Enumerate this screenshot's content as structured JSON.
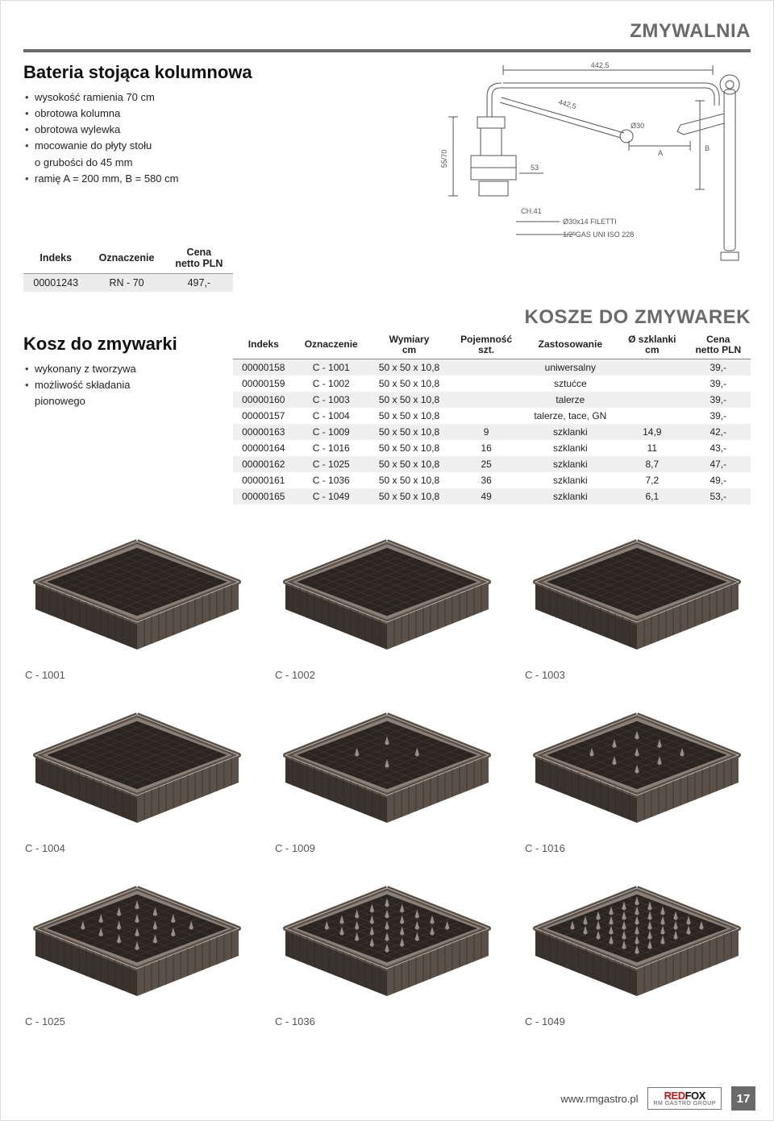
{
  "header": "ZMYWALNIA",
  "product1": {
    "title": "Bateria stojąca kolumnowa",
    "features": [
      "wysokość ramienia 70 cm",
      "obrotowa kolumna",
      "obrotowa wylewka",
      "mocowanie do płyty stołu",
      "o grubości do 45 mm",
      "ramię A = 200 mm, B = 580 cm"
    ],
    "feature_sub_indices": [
      4
    ],
    "table_headers": [
      "Indeks",
      "Oznaczenie",
      "Cena\nnetto PLN"
    ],
    "row": [
      "00001243",
      "RN - 70",
      "497,-"
    ]
  },
  "drawing": {
    "labels": {
      "top": "442,5",
      "diag": "442,5",
      "dia": "Ø30",
      "A": "A",
      "B": "B",
      "side": "55/70",
      "h53": "53",
      "CH": "CH.41",
      "fil": "Ø30x14 FILETTI",
      "gas": "1/2\"GAS UNI ISO 228"
    },
    "colors": {
      "line": "#555",
      "text": "#555"
    }
  },
  "section2": {
    "heading": "KOSZE DO ZMYWAREK",
    "title": "Kosz do zmywarki",
    "features": [
      "wykonany z tworzywa",
      "możliwość składania",
      "pionowego"
    ],
    "feature_sub_indices": [
      2
    ],
    "columns": [
      "Indeks",
      "Oznaczenie",
      "Wymiary\ncm",
      "Pojemność\nszt.",
      "Zastosowanie",
      "Ø szklanki\ncm",
      "Cena\nnetto PLN"
    ],
    "rows": [
      [
        "00000158",
        "C - 1001",
        "50 x 50 x 10,8",
        "",
        "uniwersalny",
        "",
        "39,-"
      ],
      [
        "00000159",
        "C - 1002",
        "50 x 50 x 10,8",
        "",
        "sztućce",
        "",
        "39,-"
      ],
      [
        "00000160",
        "C - 1003",
        "50 x 50 x 10,8",
        "",
        "talerze",
        "",
        "39,-"
      ],
      [
        "00000157",
        "C - 1004",
        "50 x 50 x 10,8",
        "",
        "talerze, tace, GN",
        "",
        "39,-"
      ],
      [
        "00000163",
        "C - 1009",
        "50 x 50 x 10,8",
        "9",
        "szklanki",
        "14,9",
        "42,-"
      ],
      [
        "00000164",
        "C - 1016",
        "50 x 50 x 10,8",
        "16",
        "szklanki",
        "11",
        "43,-"
      ],
      [
        "00000162",
        "C - 1025",
        "50 x 50 x 10,8",
        "25",
        "szklanki",
        "8,7",
        "47,-"
      ],
      [
        "00000161",
        "C - 1036",
        "50 x 50 x 10,8",
        "36",
        "szklanki",
        "7,2",
        "49,-"
      ],
      [
        "00000165",
        "C - 1049",
        "50 x 50 x 10,8",
        "49",
        "szklanki",
        "6,1",
        "53,-"
      ]
    ]
  },
  "grid": {
    "items": [
      {
        "code": "C - 1001",
        "divs": 1
      },
      {
        "code": "C - 1002",
        "divs": 1
      },
      {
        "code": "C - 1003",
        "divs": 1
      },
      {
        "code": "C - 1004",
        "divs": 1
      },
      {
        "code": "C - 1009",
        "divs": 3
      },
      {
        "code": "C - 1016",
        "divs": 4
      },
      {
        "code": "C - 1025",
        "divs": 5
      },
      {
        "code": "C - 1036",
        "divs": 6
      },
      {
        "code": "C - 1049",
        "divs": 7
      }
    ],
    "colors": {
      "body": "#5a5048",
      "bodyDark": "#3a332d",
      "top": "#8a8078",
      "mesh": "#2a2521",
      "peg": "#9a9088"
    }
  },
  "footer": {
    "url": "www.rmgastro.pl",
    "logo_red": "RED",
    "logo_fox": "FOX",
    "logo_sub": "RM GASTRO GROUP",
    "page": "17"
  }
}
